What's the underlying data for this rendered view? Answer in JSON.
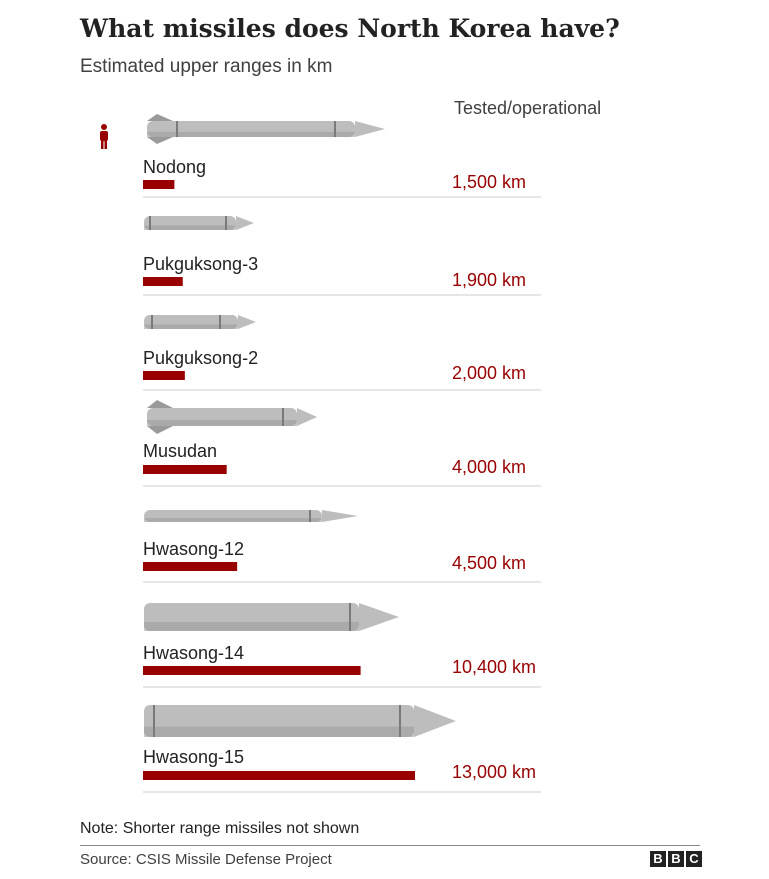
{
  "header": {
    "title": "What missiles does North Korea have?",
    "subtitle": "Estimated upper ranges in km",
    "column_header": "Tested/operational"
  },
  "footer": {
    "note": "Note: Shorter range missiles not shown",
    "source": "Source: CSIS Missile Defense Project",
    "logo_letters": [
      "B",
      "B",
      "C"
    ]
  },
  "colors": {
    "bar": "#990000",
    "value_text": "#990000",
    "missile_body": "#bdbdbd",
    "missile_dark": "#9a9a9a",
    "person_icon": "#990000",
    "divider": "#cccccc"
  },
  "icons": {
    "person": "person-icon"
  },
  "chart_data": {
    "type": "bar",
    "orientation": "horizontal",
    "categories": [
      "Nodong",
      "Pukguksong-3",
      "Pukguksong-2",
      "Musudan",
      "Hwasong-12",
      "Hwasong-14",
      "Hwasong-15"
    ],
    "values": [
      1500,
      1900,
      2000,
      4000,
      4500,
      10400,
      13000
    ],
    "value_labels": [
      "1,500 km",
      "1,900 km",
      "2,000 km",
      "4,000 km",
      "4,500 km",
      "10,400 km",
      "13,000 km"
    ],
    "unit": "km",
    "xlim": [
      0,
      13000
    ],
    "grid": false,
    "legend": "none"
  }
}
